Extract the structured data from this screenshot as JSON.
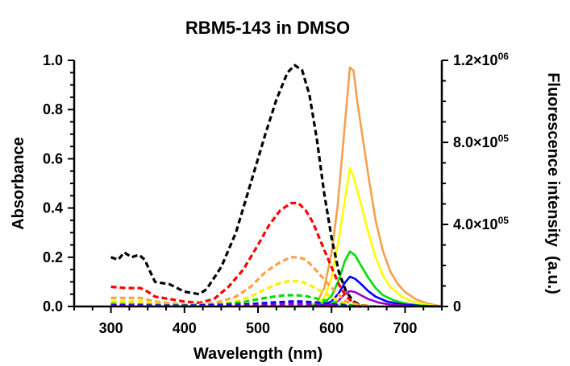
{
  "chart_data": {
    "type": "line",
    "title": "RBM5-143 in DMSO",
    "xlabel": "Wavelength (nm)",
    "ylabel_left": "Absorbance",
    "ylabel_right": "Fluorescence intensity  (a.u.)",
    "xlim": [
      250,
      750
    ],
    "ylim_left": [
      0,
      1.0
    ],
    "ylim_right": [
      0,
      1200000
    ],
    "x_ticks": [
      300,
      400,
      500,
      600,
      700
    ],
    "x_tick_labels": [
      "300",
      "400",
      "500",
      "600",
      "700"
    ],
    "y_left_ticks": [
      0.0,
      0.2,
      0.4,
      0.6,
      0.8,
      1.0
    ],
    "y_left_tick_labels": [
      "0.0",
      "0.2",
      "0.4",
      "0.6",
      "0.8",
      "1.0"
    ],
    "y_right_ticks": [
      0,
      400000,
      800000,
      1200000
    ],
    "y_right_tick_labels": [
      {
        "base": "0",
        "exp": ""
      },
      {
        "base": "4.0×10",
        "exp": "05"
      },
      {
        "base": "8.0×10",
        "exp": "05"
      },
      {
        "base": "1.2×10",
        "exp": "06"
      }
    ],
    "grid": false,
    "legend": "none",
    "absorbance_series": [
      {
        "color": "#000000",
        "points": [
          [
            300,
            0.2
          ],
          [
            310,
            0.19
          ],
          [
            318,
            0.22
          ],
          [
            328,
            0.2
          ],
          [
            338,
            0.21
          ],
          [
            346,
            0.19
          ],
          [
            352,
            0.15
          ],
          [
            360,
            0.1
          ],
          [
            380,
            0.09
          ],
          [
            400,
            0.06
          ],
          [
            420,
            0.05
          ],
          [
            430,
            0.07
          ],
          [
            450,
            0.16
          ],
          [
            470,
            0.3
          ],
          [
            490,
            0.5
          ],
          [
            510,
            0.7
          ],
          [
            525,
            0.84
          ],
          [
            540,
            0.95
          ],
          [
            550,
            0.98
          ],
          [
            560,
            0.96
          ],
          [
            570,
            0.86
          ],
          [
            580,
            0.68
          ],
          [
            590,
            0.46
          ],
          [
            600,
            0.28
          ],
          [
            610,
            0.14
          ],
          [
            620,
            0.06
          ],
          [
            630,
            0.02
          ],
          [
            640,
            0.005
          ],
          [
            660,
            0.0
          ]
        ]
      },
      {
        "color": "#ff0000",
        "points": [
          [
            300,
            0.08
          ],
          [
            320,
            0.075
          ],
          [
            340,
            0.075
          ],
          [
            350,
            0.06
          ],
          [
            360,
            0.04
          ],
          [
            380,
            0.03
          ],
          [
            400,
            0.02
          ],
          [
            420,
            0.015
          ],
          [
            440,
            0.03
          ],
          [
            460,
            0.08
          ],
          [
            480,
            0.15
          ],
          [
            500,
            0.25
          ],
          [
            515,
            0.33
          ],
          [
            530,
            0.39
          ],
          [
            545,
            0.42
          ],
          [
            555,
            0.42
          ],
          [
            565,
            0.39
          ],
          [
            575,
            0.34
          ],
          [
            590,
            0.23
          ],
          [
            600,
            0.16
          ],
          [
            610,
            0.09
          ],
          [
            620,
            0.04
          ],
          [
            630,
            0.015
          ],
          [
            640,
            0.004
          ],
          [
            660,
            0.0
          ]
        ]
      },
      {
        "color": "#ffa04a",
        "points": [
          [
            300,
            0.035
          ],
          [
            340,
            0.035
          ],
          [
            360,
            0.02
          ],
          [
            400,
            0.008
          ],
          [
            440,
            0.012
          ],
          [
            470,
            0.04
          ],
          [
            490,
            0.08
          ],
          [
            510,
            0.14
          ],
          [
            530,
            0.18
          ],
          [
            545,
            0.2
          ],
          [
            555,
            0.2
          ],
          [
            565,
            0.19
          ],
          [
            575,
            0.16
          ],
          [
            590,
            0.11
          ],
          [
            605,
            0.06
          ],
          [
            620,
            0.02
          ],
          [
            640,
            0.004
          ],
          [
            660,
            0.0
          ]
        ]
      },
      {
        "color": "#ffee00",
        "points": [
          [
            300,
            0.02
          ],
          [
            340,
            0.02
          ],
          [
            380,
            0.008
          ],
          [
            440,
            0.006
          ],
          [
            470,
            0.02
          ],
          [
            490,
            0.04
          ],
          [
            510,
            0.07
          ],
          [
            530,
            0.095
          ],
          [
            545,
            0.105
          ],
          [
            560,
            0.1
          ],
          [
            575,
            0.08
          ],
          [
            590,
            0.055
          ],
          [
            605,
            0.03
          ],
          [
            620,
            0.01
          ],
          [
            640,
            0.002
          ],
          [
            660,
            0.0
          ]
        ]
      },
      {
        "color": "#00dd00",
        "points": [
          [
            300,
            0.01
          ],
          [
            400,
            0.005
          ],
          [
            450,
            0.008
          ],
          [
            480,
            0.018
          ],
          [
            510,
            0.035
          ],
          [
            535,
            0.045
          ],
          [
            550,
            0.046
          ],
          [
            565,
            0.042
          ],
          [
            580,
            0.032
          ],
          [
            600,
            0.018
          ],
          [
            620,
            0.006
          ],
          [
            640,
            0.0
          ]
        ]
      },
      {
        "color": "#0000ff",
        "points": [
          [
            300,
            0.005
          ],
          [
            400,
            0.003
          ],
          [
            480,
            0.008
          ],
          [
            520,
            0.016
          ],
          [
            545,
            0.02
          ],
          [
            560,
            0.02
          ],
          [
            580,
            0.016
          ],
          [
            600,
            0.009
          ],
          [
            620,
            0.003
          ],
          [
            640,
            0.0
          ]
        ]
      },
      {
        "color": "#9900cc",
        "points": [
          [
            300,
            0.003
          ],
          [
            450,
            0.002
          ],
          [
            500,
            0.005
          ],
          [
            540,
            0.01
          ],
          [
            560,
            0.01
          ],
          [
            580,
            0.008
          ],
          [
            600,
            0.004
          ],
          [
            620,
            0.001
          ],
          [
            640,
            0.0
          ]
        ]
      }
    ],
    "fluorescence_series": [
      {
        "color": "#f5a050",
        "points": [
          [
            555,
            0
          ],
          [
            570,
            4000
          ],
          [
            580,
            18000
          ],
          [
            590,
            90000
          ],
          [
            600,
            260000
          ],
          [
            608,
            480000
          ],
          [
            615,
            760000
          ],
          [
            620,
            960000
          ],
          [
            625,
            1165000
          ],
          [
            630,
            1150000
          ],
          [
            635,
            1000000
          ],
          [
            640,
            880000
          ],
          [
            650,
            640000
          ],
          [
            660,
            420000
          ],
          [
            670,
            270000
          ],
          [
            680,
            170000
          ],
          [
            690,
            110000
          ],
          [
            700,
            70000
          ],
          [
            715,
            35000
          ],
          [
            730,
            15000
          ],
          [
            750,
            0
          ]
        ]
      },
      {
        "color": "#ffff00",
        "points": [
          [
            560,
            0
          ],
          [
            575,
            6000
          ],
          [
            590,
            40000
          ],
          [
            600,
            140000
          ],
          [
            610,
            330000
          ],
          [
            620,
            560000
          ],
          [
            625,
            675000
          ],
          [
            630,
            630000
          ],
          [
            640,
            500000
          ],
          [
            650,
            360000
          ],
          [
            660,
            240000
          ],
          [
            670,
            150000
          ],
          [
            680,
            95000
          ],
          [
            695,
            50000
          ],
          [
            710,
            25000
          ],
          [
            730,
            8000
          ],
          [
            750,
            0
          ]
        ]
      },
      {
        "color": "#00dd00",
        "points": [
          [
            570,
            0
          ],
          [
            590,
            20000
          ],
          [
            600,
            50000
          ],
          [
            610,
            130000
          ],
          [
            618,
            220000
          ],
          [
            625,
            268000
          ],
          [
            632,
            250000
          ],
          [
            640,
            200000
          ],
          [
            650,
            140000
          ],
          [
            660,
            90000
          ],
          [
            670,
            55000
          ],
          [
            685,
            30000
          ],
          [
            700,
            15000
          ],
          [
            720,
            5000
          ],
          [
            750,
            0
          ]
        ]
      },
      {
        "color": "#0000ff",
        "points": [
          [
            575,
            0
          ],
          [
            590,
            8000
          ],
          [
            600,
            25000
          ],
          [
            610,
            65000
          ],
          [
            618,
            115000
          ],
          [
            625,
            145000
          ],
          [
            632,
            135000
          ],
          [
            640,
            110000
          ],
          [
            650,
            75000
          ],
          [
            660,
            48000
          ],
          [
            675,
            25000
          ],
          [
            695,
            10000
          ],
          [
            720,
            3000
          ],
          [
            750,
            0
          ]
        ]
      },
      {
        "color": "#9900cc",
        "points": [
          [
            580,
            0
          ],
          [
            600,
            10000
          ],
          [
            610,
            30000
          ],
          [
            618,
            60000
          ],
          [
            625,
            75000
          ],
          [
            632,
            70000
          ],
          [
            640,
            55000
          ],
          [
            650,
            36000
          ],
          [
            665,
            18000
          ],
          [
            685,
            7000
          ],
          [
            710,
            2000
          ],
          [
            740,
            0
          ]
        ]
      }
    ]
  }
}
